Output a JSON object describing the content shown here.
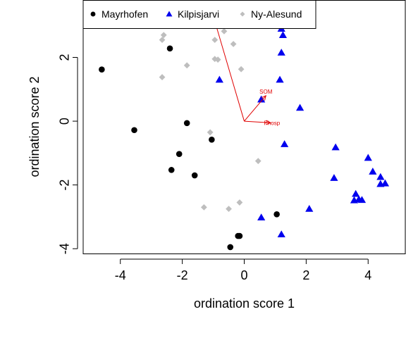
{
  "chart_data": {
    "type": "scatter",
    "xlabel": "ordination score 1",
    "ylabel": "ordination score 2",
    "xlim": [
      -5.2,
      5.2
    ],
    "ylim": [
      -4.15,
      3.8
    ],
    "x_ticks": [
      -4,
      -2,
      0,
      2,
      4
    ],
    "y_ticks": [
      -4,
      -2,
      0,
      2
    ],
    "legend_position": "top",
    "series": [
      {
        "name": "Mayrhofen",
        "marker": "circle",
        "color": "#000000",
        "points": [
          [
            -4.6,
            1.62
          ],
          [
            -2.4,
            2.28
          ],
          [
            -3.55,
            -0.28
          ],
          [
            -1.85,
            -0.06
          ],
          [
            -1.05,
            -0.58
          ],
          [
            -2.1,
            -1.03
          ],
          [
            -2.35,
            -1.53
          ],
          [
            -1.6,
            -1.7
          ],
          [
            1.05,
            -2.92
          ],
          [
            -0.15,
            -3.6
          ],
          [
            -0.2,
            -3.6
          ],
          [
            -0.45,
            -3.95
          ]
        ]
      },
      {
        "name": "Kilpisjarvi",
        "marker": "triangle",
        "color": "#0000ee",
        "points": [
          [
            1.2,
            2.9
          ],
          [
            1.25,
            2.7
          ],
          [
            1.2,
            2.15
          ],
          [
            1.15,
            1.3
          ],
          [
            -0.8,
            1.3
          ],
          [
            0.55,
            0.68
          ],
          [
            1.8,
            0.42
          ],
          [
            1.3,
            -0.72
          ],
          [
            2.95,
            -0.82
          ],
          [
            2.9,
            -1.78
          ],
          [
            4.0,
            -1.15
          ],
          [
            4.15,
            -1.58
          ],
          [
            4.4,
            -1.75
          ],
          [
            4.4,
            -1.97
          ],
          [
            4.55,
            -1.95
          ],
          [
            3.6,
            -2.28
          ],
          [
            3.55,
            -2.48
          ],
          [
            3.7,
            -2.45
          ],
          [
            3.8,
            -2.47
          ],
          [
            2.1,
            -2.75
          ],
          [
            0.55,
            -3.02
          ],
          [
            1.2,
            -3.55
          ]
        ]
      },
      {
        "name": "Ny-Alesund",
        "marker": "diamond",
        "color": "#bebebe",
        "points": [
          [
            -2.8,
            3.0
          ],
          [
            -2.6,
            2.7
          ],
          [
            -2.65,
            2.55
          ],
          [
            -0.65,
            2.82
          ],
          [
            -0.95,
            2.55
          ],
          [
            -0.35,
            2.42
          ],
          [
            -1.85,
            1.75
          ],
          [
            -0.95,
            1.95
          ],
          [
            -0.85,
            1.93
          ],
          [
            -0.1,
            1.63
          ],
          [
            -2.65,
            1.38
          ],
          [
            -1.1,
            -0.35
          ],
          [
            0.45,
            -1.25
          ],
          [
            -1.3,
            -2.7
          ],
          [
            -0.5,
            -2.75
          ],
          [
            -0.15,
            -2.55
          ]
        ]
      }
    ],
    "vectors": [
      {
        "label": "SOM",
        "x": 0.7,
        "y": 0.8
      },
      {
        "label": "Phosp",
        "x": 0.85,
        "y": -0.05
      },
      {
        "label": "",
        "x": -1.0,
        "y": 3.3
      }
    ]
  }
}
